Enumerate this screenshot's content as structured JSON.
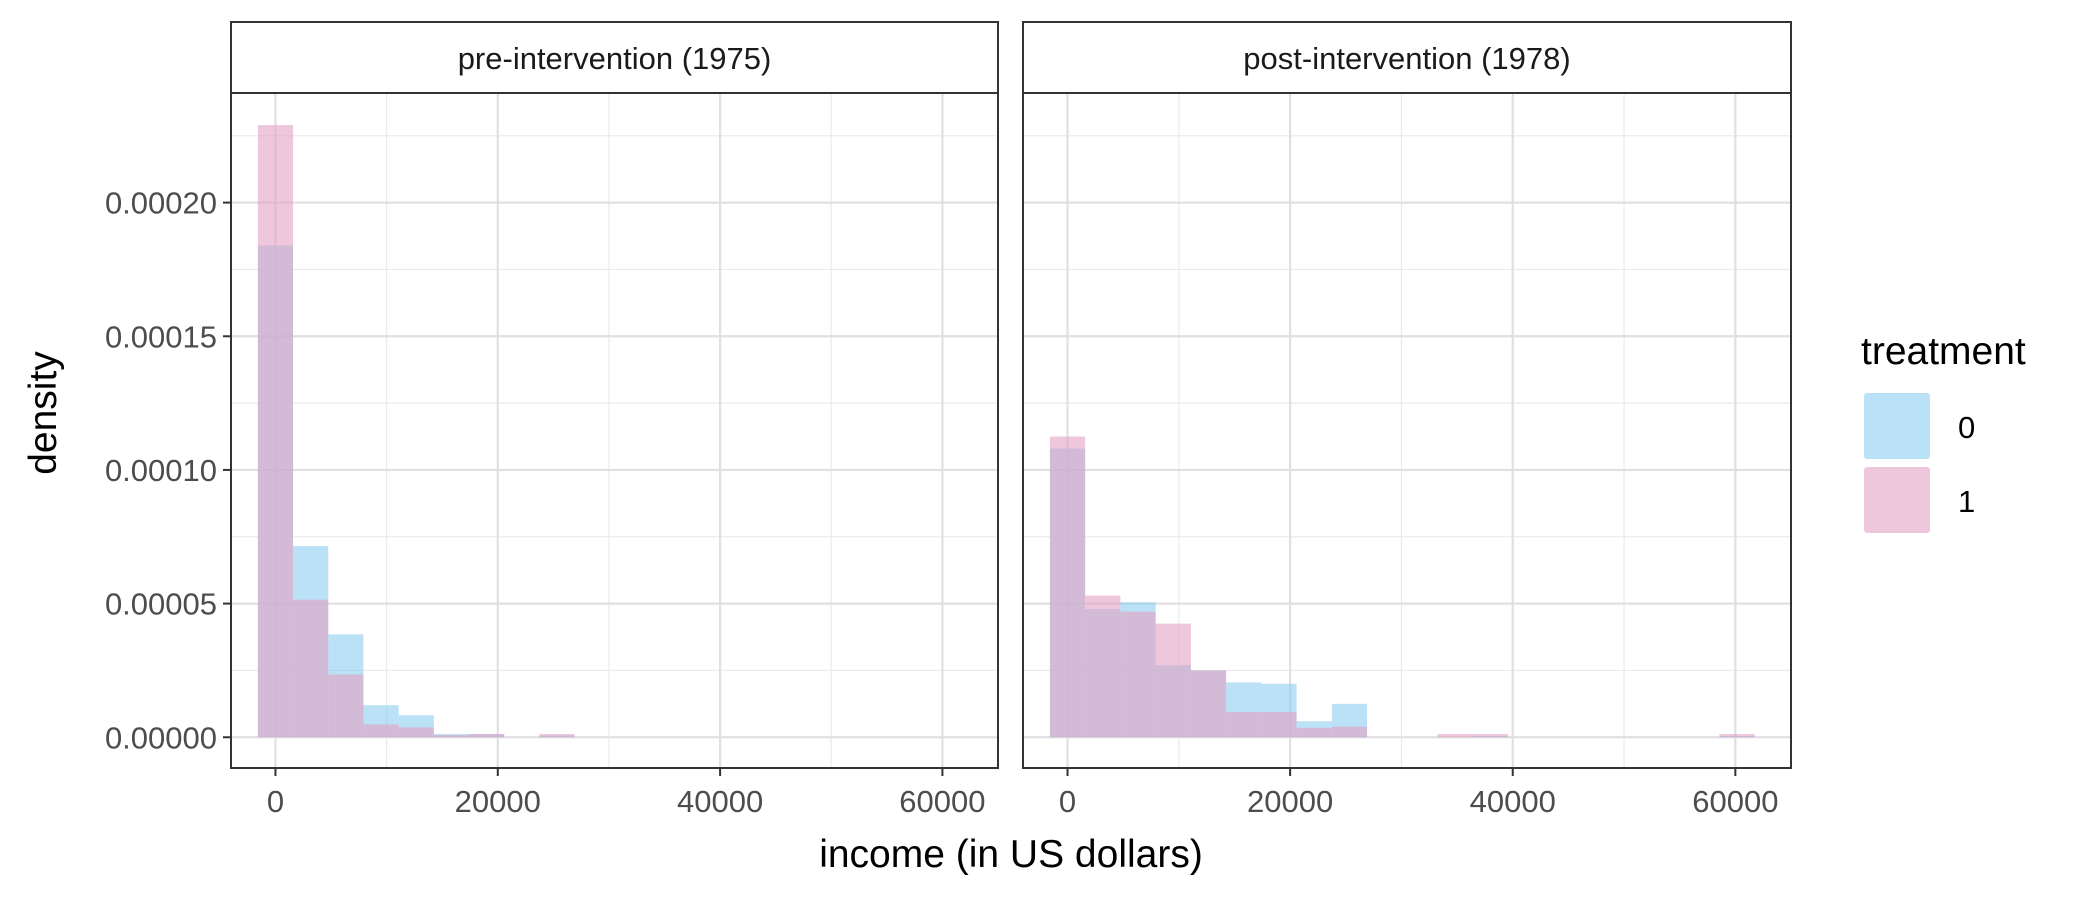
{
  "chart_data": {
    "type": "bar",
    "title": "",
    "xlabel": "income (in US dollars)",
    "ylabel": "density",
    "xlim": [
      -4000,
      65000
    ],
    "ylim": [
      -1.15e-05,
      0.000241
    ],
    "x_ticks": [
      0,
      20000,
      40000,
      60000
    ],
    "x_tick_labels": [
      "0",
      "20000",
      "40000",
      "60000"
    ],
    "y_ticks": [
      0,
      5e-05,
      0.0001,
      0.00015,
      0.0002
    ],
    "y_tick_labels": [
      "0.00000",
      "0.00005",
      "0.00010",
      "0.00015",
      "0.00020"
    ],
    "grid": true,
    "bin_width": 3166,
    "bin_start": -1583,
    "legend": {
      "title": "treatment",
      "position": "right",
      "entries": [
        {
          "label": "0",
          "color": "#8ecdf0"
        },
        {
          "label": "1",
          "color": "#e2a1c4"
        }
      ]
    },
    "panels": [
      {
        "strip": "pre-intervention (1975)",
        "series": [
          {
            "group": "0",
            "color": "#8ecdf0",
            "values": [
              0.000184,
              7.15e-05,
              3.85e-05,
              1.2e-05,
              8.2e-06,
              1.2e-06,
              1.2e-06,
              0.0,
              7e-07,
              0,
              0,
              0,
              0,
              0,
              0,
              0,
              0,
              0,
              0,
              0
            ]
          },
          {
            "group": "1",
            "color": "#e2a1c4",
            "values": [
              0.000229,
              5.15e-05,
              2.35e-05,
              4.8e-06,
              3.7e-06,
              8e-07,
              1.2e-06,
              0.0,
              1.2e-06,
              0,
              0,
              0,
              0,
              0,
              0,
              0,
              0,
              0,
              0,
              0
            ]
          }
        ]
      },
      {
        "strip": "post-intervention (1978)",
        "series": [
          {
            "group": "0",
            "color": "#8ecdf0",
            "values": [
              0.000108,
              4.8e-05,
              5.05e-05,
              2.7e-05,
              2.5e-05,
              2.05e-05,
              2e-05,
              6e-06,
              1.25e-05,
              0,
              0,
              0,
              5e-07,
              0,
              0,
              0,
              0,
              0,
              0,
              5e-07
            ]
          },
          {
            "group": "1",
            "color": "#e2a1c4",
            "values": [
              0.0001125,
              5.3e-05,
              4.7e-05,
              4.25e-05,
              2.5e-05,
              9.5e-06,
              9.5e-06,
              3.5e-06,
              4e-06,
              0,
              0,
              1.2e-06,
              1.2e-06,
              0,
              0,
              0,
              0,
              0,
              0,
              1.2e-06
            ]
          }
        ]
      }
    ]
  }
}
